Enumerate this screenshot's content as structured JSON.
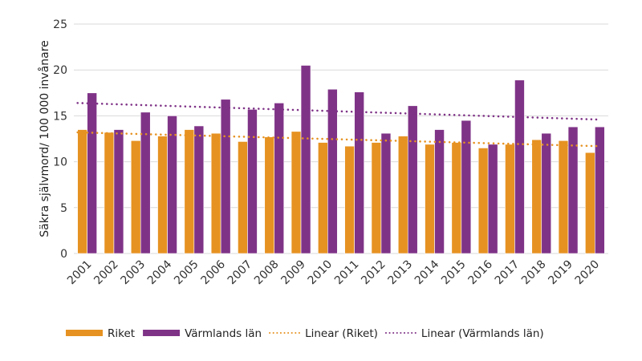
{
  "chart_data": {
    "type": "bar",
    "title": "",
    "xlabel": "",
    "ylabel": "Säkra självmord/ 100 000 invånare",
    "ylim": [
      0,
      25
    ],
    "yticks": [
      0,
      5,
      10,
      15,
      20,
      25
    ],
    "grid": true,
    "legend_position": "bottom",
    "categories": [
      "2001",
      "2002",
      "2003",
      "2004",
      "2005",
      "2006",
      "2007",
      "2008",
      "2009",
      "2010",
      "2011",
      "2012",
      "2013",
      "2014",
      "2015",
      "2016",
      "2017",
      "2018",
      "2019",
      "2020"
    ],
    "series": [
      {
        "name": "Riket",
        "type": "bar",
        "color": "#E69222",
        "values": [
          13.5,
          13.2,
          12.3,
          12.8,
          13.5,
          13.1,
          12.2,
          12.7,
          13.3,
          12.1,
          11.7,
          12.1,
          12.8,
          11.9,
          12.1,
          11.5,
          11.9,
          12.4,
          12.3,
          11.0
        ]
      },
      {
        "name": "Värmlands län",
        "type": "bar",
        "color": "#7F3387",
        "values": [
          17.5,
          13.5,
          15.4,
          15.0,
          13.9,
          16.8,
          15.7,
          16.4,
          20.5,
          17.9,
          17.6,
          13.1,
          16.1,
          13.5,
          14.5,
          11.9,
          18.9,
          13.1,
          13.8,
          13.8
        ]
      },
      {
        "name": "Linear (Riket)",
        "type": "trendline",
        "color": "#E69222",
        "values": [
          13.2,
          11.7
        ]
      },
      {
        "name": "Linear (Värmlands län)",
        "type": "trendline",
        "color": "#7F3387",
        "values": [
          16.4,
          14.6
        ]
      }
    ]
  }
}
